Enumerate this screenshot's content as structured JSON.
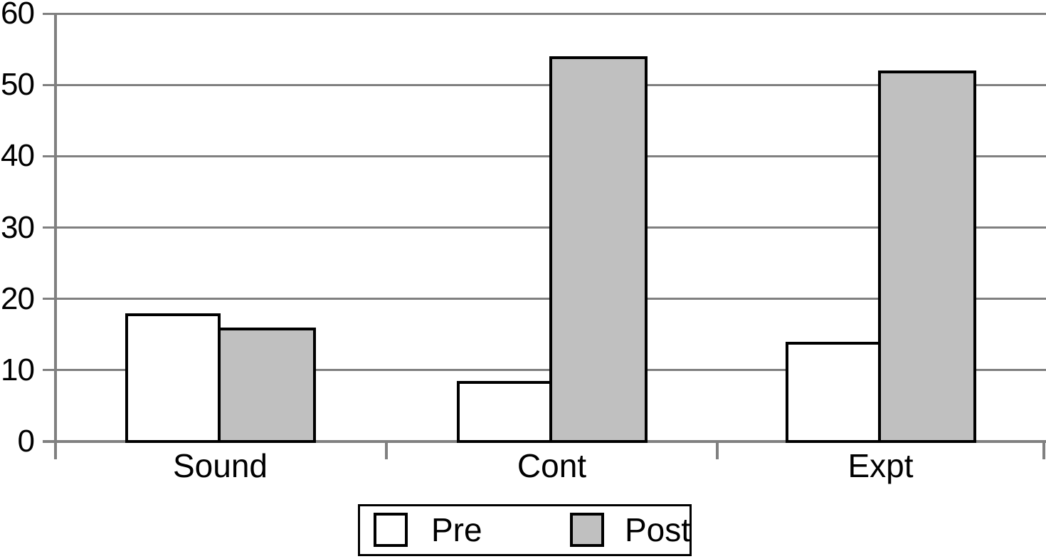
{
  "colors": {
    "background": "#FFFFFF",
    "grid": "#808080",
    "axis": "#808080",
    "bar_border": "#000000",
    "text": "#000000",
    "pre_fill": "#FFFFFF",
    "post_fill": "#C0C0C0"
  },
  "chart_data": {
    "type": "bar",
    "title": "",
    "xlabel": "",
    "ylabel": "",
    "categories": [
      "Sound",
      "Cont",
      "Expt"
    ],
    "series": [
      {
        "name": "Pre",
        "fill": "#FFFFFF",
        "values": [
          18,
          8.5,
          14
        ]
      },
      {
        "name": "Post",
        "fill": "#C0C0C0",
        "values": [
          16,
          54,
          52
        ]
      }
    ],
    "ylim": [
      0,
      60
    ],
    "yticks": [
      0,
      10,
      20,
      30,
      40,
      50,
      60
    ],
    "grid": true,
    "legend_position": "bottom",
    "legend_labels": [
      "Pre",
      "Post"
    ]
  }
}
